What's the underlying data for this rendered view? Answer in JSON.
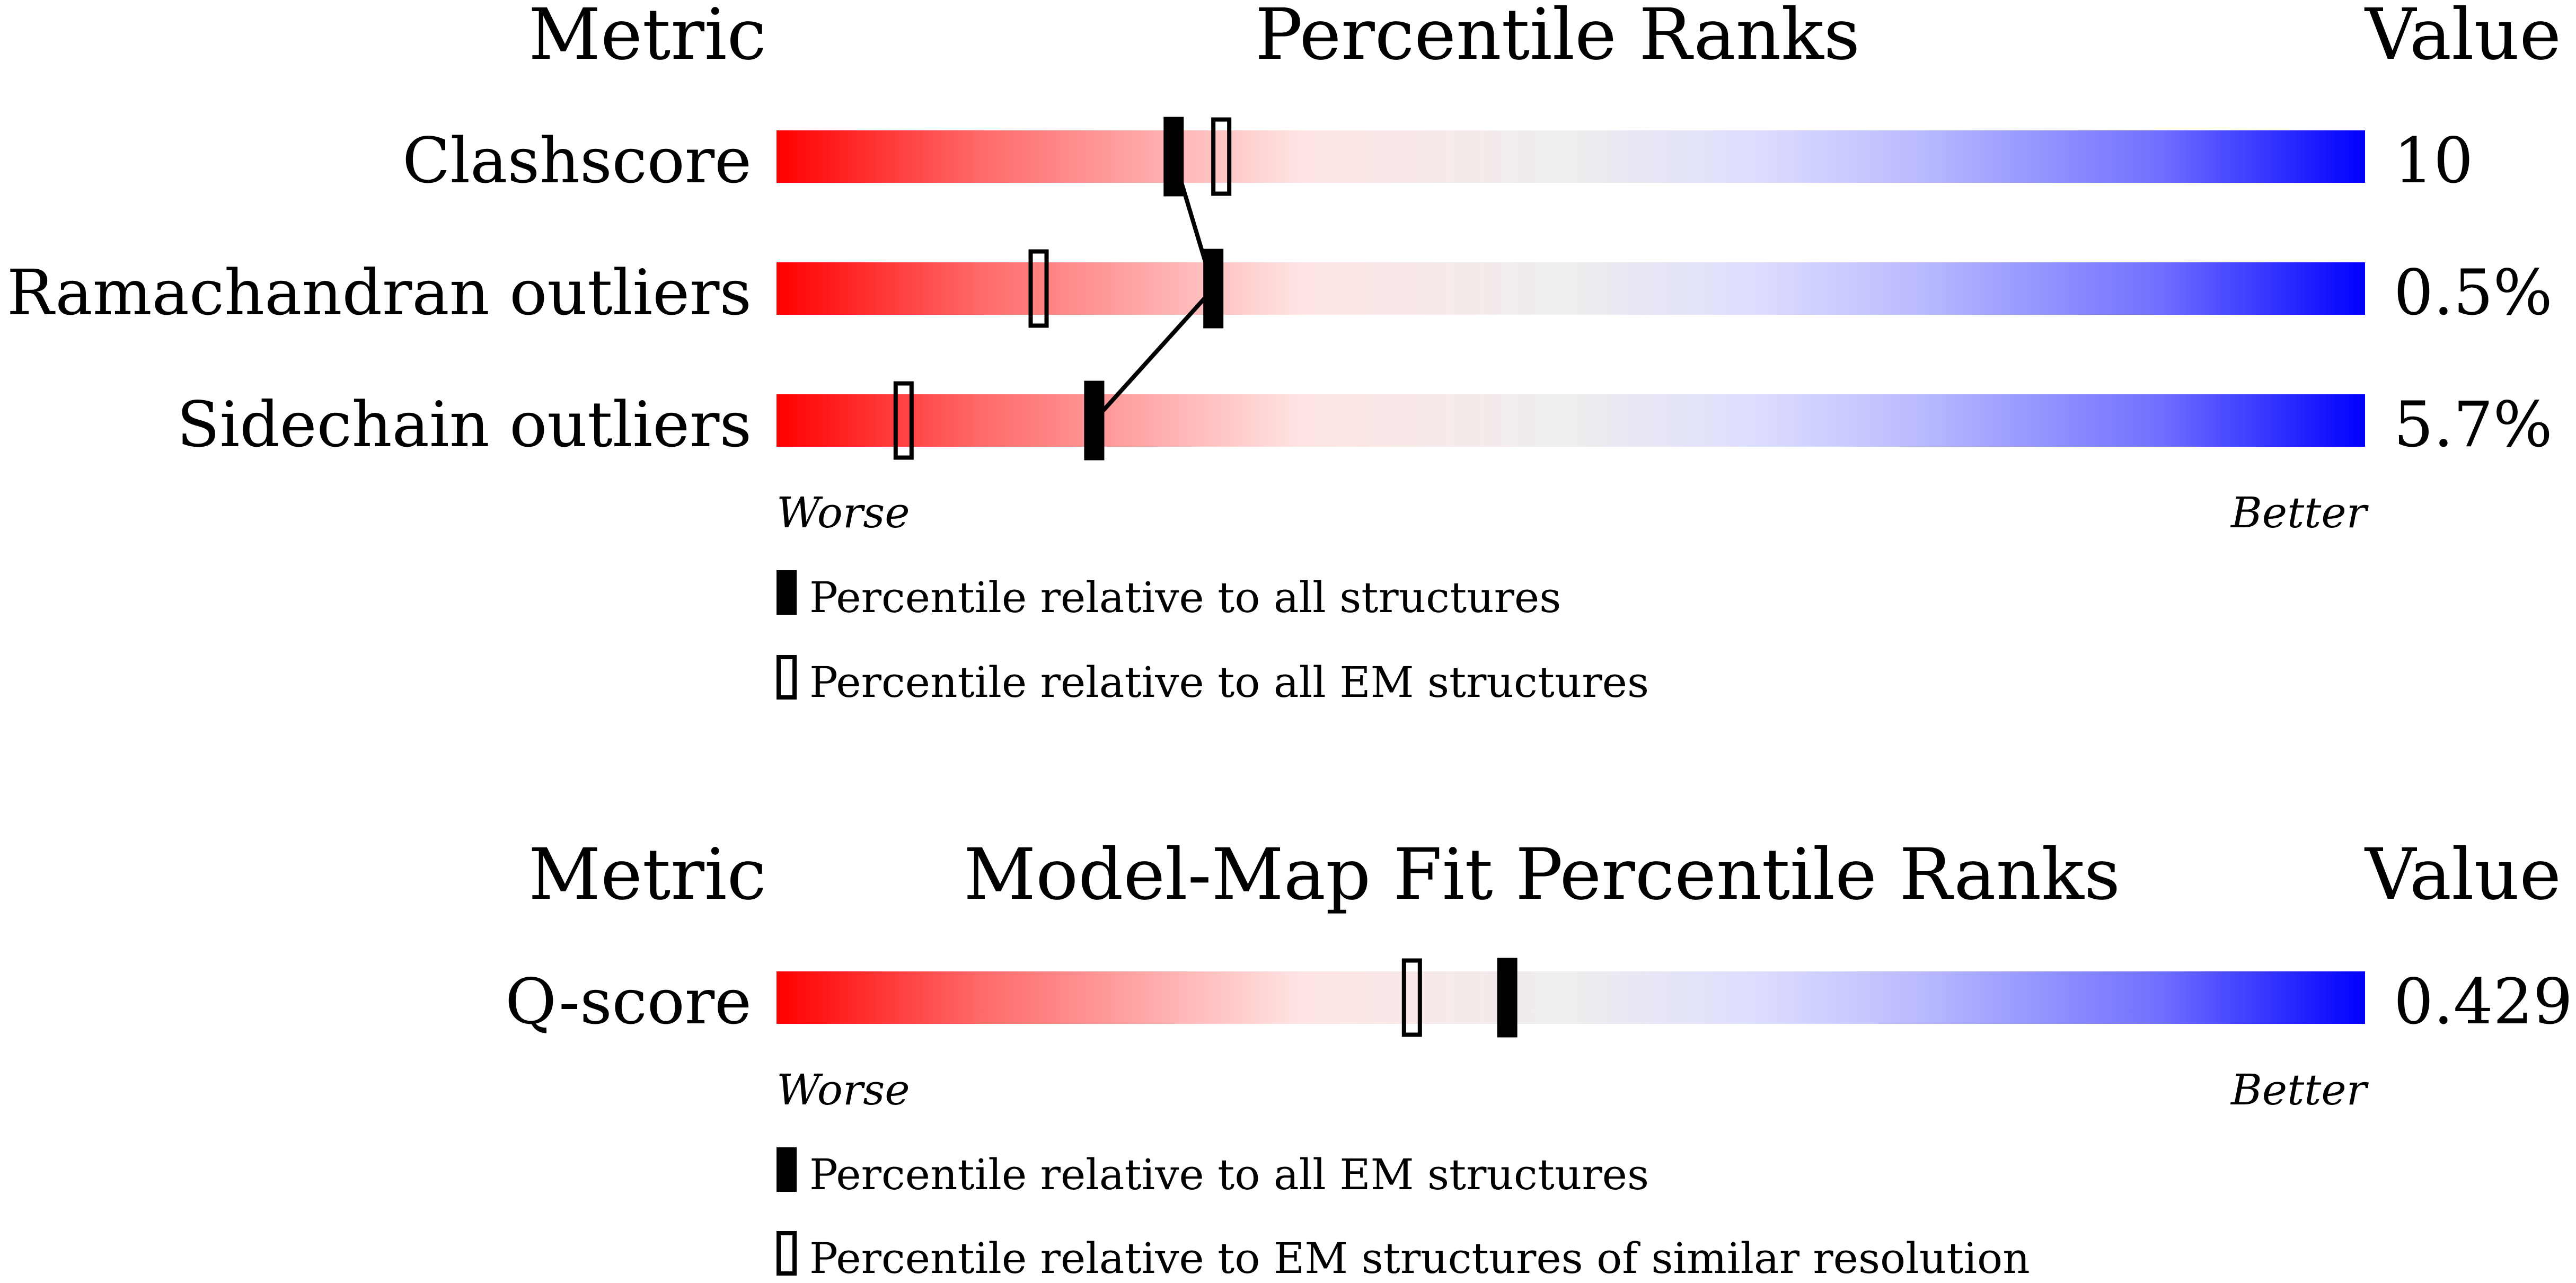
{
  "chart_data": [
    {
      "type": "percentile-rank",
      "headers": {
        "metric": "Metric",
        "title": "Percentile Ranks",
        "value": "Value"
      },
      "scale": {
        "min": 0,
        "max": 100,
        "left_label": "Worse",
        "right_label": "Better"
      },
      "rows": [
        {
          "metric": "Clashscore",
          "value": "10",
          "percentile_all": 25,
          "percentile_em": 28
        },
        {
          "metric": "Ramachandran outliers",
          "value": "0.5%",
          "percentile_all": 27.5,
          "percentile_em": 16.5
        },
        {
          "metric": "Sidechain outliers",
          "value": "5.7%",
          "percentile_all": 20,
          "percentile_em": 8
        }
      ],
      "legend": {
        "filled": "Percentile relative to all structures",
        "hollow": "Percentile relative to all EM structures"
      },
      "connect_filled_marks": true
    },
    {
      "type": "percentile-rank",
      "headers": {
        "metric": "Metric",
        "title": "Model-Map Fit Percentile Ranks",
        "value": "Value"
      },
      "scale": {
        "min": 0,
        "max": 100,
        "left_label": "Worse",
        "right_label": "Better"
      },
      "rows": [
        {
          "metric": "Q-score",
          "value": "0.429",
          "percentile_all": 46,
          "percentile_em": 40
        }
      ],
      "legend": {
        "filled": "Percentile relative to all EM structures",
        "hollow": "Percentile relative to EM structures of similar resolution"
      },
      "connect_filled_marks": false
    }
  ],
  "colors": {
    "worse": "#ff0000",
    "middle": "#eeeeee",
    "better": "#0000ff",
    "marker": "#000000"
  }
}
